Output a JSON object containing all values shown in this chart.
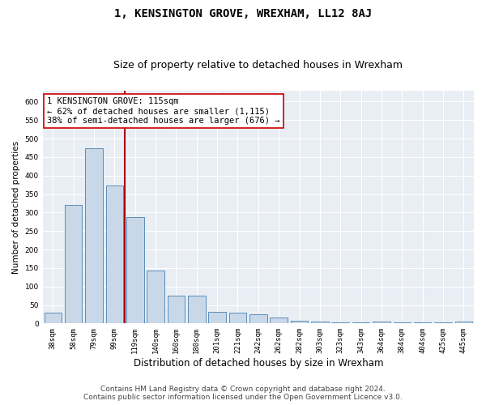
{
  "title": "1, KENSINGTON GROVE, WREXHAM, LL12 8AJ",
  "subtitle": "Size of property relative to detached houses in Wrexham",
  "xlabel": "Distribution of detached houses by size in Wrexham",
  "ylabel": "Number of detached properties",
  "categories": [
    "38sqm",
    "58sqm",
    "79sqm",
    "99sqm",
    "119sqm",
    "140sqm",
    "160sqm",
    "180sqm",
    "201sqm",
    "221sqm",
    "242sqm",
    "262sqm",
    "282sqm",
    "303sqm",
    "323sqm",
    "343sqm",
    "364sqm",
    "384sqm",
    "404sqm",
    "425sqm",
    "445sqm"
  ],
  "values": [
    30,
    320,
    473,
    373,
    288,
    143,
    75,
    75,
    32,
    30,
    25,
    15,
    8,
    5,
    2,
    2,
    5,
    2,
    2,
    2,
    5
  ],
  "bar_color": "#c8d8e8",
  "bar_edge_color": "#5b8db8",
  "vline_index": 4,
  "vline_color": "#aa0000",
  "annotation_line1": "1 KENSINGTON GROVE: 115sqm",
  "annotation_line2": "← 62% of detached houses are smaller (1,115)",
  "annotation_line3": "38% of semi-detached houses are larger (676) →",
  "annotation_box_color": "#ffffff",
  "annotation_box_edge": "#cc0000",
  "ylim": [
    0,
    630
  ],
  "yticks": [
    0,
    50,
    100,
    150,
    200,
    250,
    300,
    350,
    400,
    450,
    500,
    550,
    600
  ],
  "background_color": "#e8eef4",
  "footer_line1": "Contains HM Land Registry data © Crown copyright and database right 2024.",
  "footer_line2": "Contains public sector information licensed under the Open Government Licence v3.0.",
  "title_fontsize": 10,
  "subtitle_fontsize": 9,
  "xlabel_fontsize": 8.5,
  "ylabel_fontsize": 7.5,
  "tick_fontsize": 6.5,
  "annot_fontsize": 7.5,
  "footer_fontsize": 6.5
}
